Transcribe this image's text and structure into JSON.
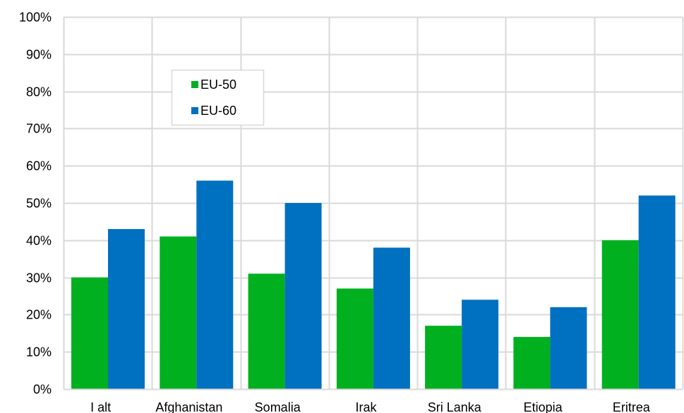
{
  "chart_data": {
    "type": "bar",
    "categories": [
      "I alt",
      "Afghanistan",
      "Somalia",
      "Irak",
      "Sri Lanka",
      "Etiopia",
      "Eritrea"
    ],
    "series": [
      {
        "name": "EU-50",
        "color": "#00B01F",
        "values": [
          0.3,
          0.41,
          0.31,
          0.27,
          0.17,
          0.14,
          0.4
        ]
      },
      {
        "name": "EU-60",
        "color": "#0070C0",
        "values": [
          0.43,
          0.56,
          0.5,
          0.38,
          0.24,
          0.22,
          0.52
        ]
      }
    ],
    "ylim": [
      0,
      1
    ],
    "yticks": [
      0,
      0.1,
      0.2,
      0.3,
      0.4,
      0.5,
      0.6,
      0.7,
      0.8,
      0.9,
      1.0
    ],
    "ytick_labels": [
      "0%",
      "10%",
      "20%",
      "30%",
      "40%",
      "50%",
      "60%",
      "70%",
      "80%",
      "90%",
      "100%"
    ],
    "title": "",
    "xlabel": "",
    "ylabel": "",
    "grid": "vertical category separators and horizontal gridlines",
    "legend_position": "upper-left inside plot",
    "gridline_color": "#D9D9D9"
  }
}
